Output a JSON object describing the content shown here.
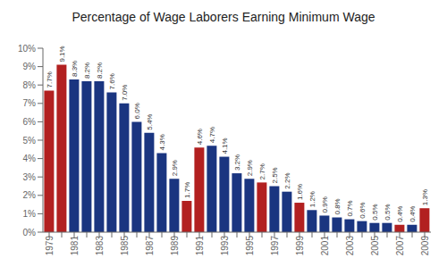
{
  "chart_data": {
    "type": "bar",
    "title": "Percentage of Wage Laborers Earning Minimum Wage",
    "categories": [
      "1979",
      null,
      "1981",
      null,
      "1983",
      null,
      "1985",
      null,
      "1987",
      null,
      "1989",
      null,
      "1991",
      null,
      "1993",
      null,
      "1995",
      null,
      "1997",
      null,
      "1999",
      null,
      "2001",
      null,
      "2003",
      null,
      "2005",
      null,
      "2007",
      null,
      "2009"
    ],
    "values": [
      7.7,
      9.1,
      8.3,
      8.2,
      8.2,
      7.6,
      7.0,
      6.0,
      5.4,
      4.3,
      2.9,
      1.7,
      4.6,
      4.7,
      4.1,
      3.2,
      2.9,
      2.7,
      2.5,
      2.2,
      1.6,
      1.2,
      0.9,
      0.8,
      0.7,
      0.6,
      0.5,
      0.5,
      0.4,
      0.4,
      1.3
    ],
    "value_labels": [
      "7.7%",
      "9.1%",
      "8.3%",
      "8.2%",
      "8.2%",
      "7.6%",
      "7.0%",
      "6.0%",
      "5.4%",
      "4.3%",
      "2.9%",
      "1.7%",
      "4.6%",
      "4.7%",
      "4.1%",
      "3.2%",
      "2.9%",
      "2.7%",
      "2.5%",
      "2.2%",
      "1.6%",
      "1.2%",
      "0.9%",
      "0.8%",
      "0.7%",
      "0.6%",
      "0.5%",
      "0.5%",
      "0.4%",
      "0.4%",
      "1.3%"
    ],
    "colors": [
      "#b22020",
      "#b22020",
      "#1a3580",
      "#1a3580",
      "#1a3580",
      "#1a3580",
      "#1a3580",
      "#1a3580",
      "#1a3580",
      "#1a3580",
      "#1a3580",
      "#b22020",
      "#b22020",
      "#1a3580",
      "#1a3580",
      "#1a3580",
      "#1a3580",
      "#b22020",
      "#1a3580",
      "#1a3580",
      "#b22020",
      "#1a3580",
      "#1a3580",
      "#1a3580",
      "#1a3580",
      "#1a3580",
      "#1a3580",
      "#1a3580",
      "#b22020",
      "#1a3580",
      "#b22020"
    ],
    "ylim": [
      0,
      10
    ],
    "yticks": [
      {
        "value": 0,
        "label": "0%"
      },
      {
        "value": 1,
        "label": "1%"
      },
      {
        "value": 2,
        "label": "2%"
      },
      {
        "value": 3,
        "label": "3%"
      },
      {
        "value": 4,
        "label": "4%"
      },
      {
        "value": 5,
        "label": "5%"
      },
      {
        "value": 6,
        "label": "6%"
      },
      {
        "value": 7,
        "label": "7%"
      },
      {
        "value": 8,
        "label": "8%"
      },
      {
        "value": 9,
        "label": "9%"
      },
      {
        "value": 10,
        "label": "10%"
      }
    ],
    "grid": false,
    "data_labels": true
  }
}
